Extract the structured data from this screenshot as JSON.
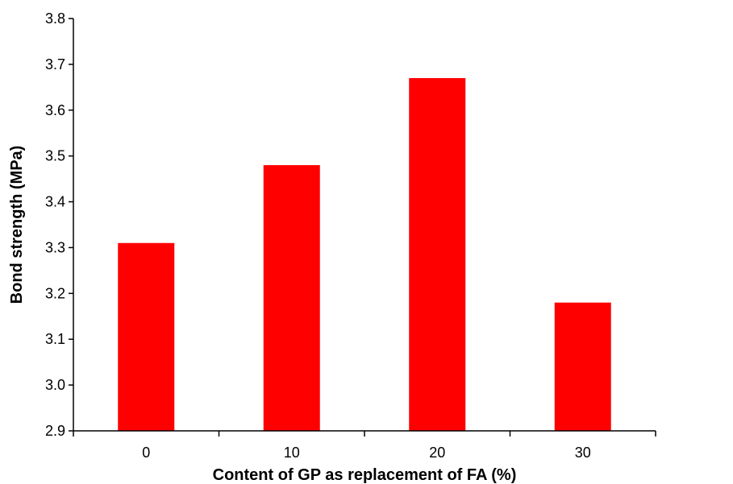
{
  "chart_data": {
    "type": "bar",
    "categories": [
      "0",
      "10",
      "20",
      "30"
    ],
    "values": [
      3.31,
      3.48,
      3.67,
      3.18
    ],
    "xlabel": "Content of GP as replacement of FA (%)",
    "ylabel": "Bond strength (MPa)",
    "ylim": [
      2.9,
      3.8
    ],
    "yticks": [
      "2.9",
      "3.0",
      "3.1",
      "3.2",
      "3.3",
      "3.4",
      "3.5",
      "3.6",
      "3.7",
      "3.8"
    ],
    "bar_color": "#ff0000",
    "grid": false,
    "legend": "none"
  }
}
